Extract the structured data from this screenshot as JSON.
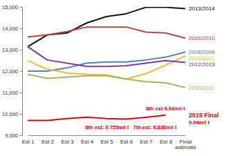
{
  "chart_data": {
    "type": "line",
    "categories": [
      "Est 1",
      "Est 2",
      "Est 3",
      "Est 4",
      "Est 5",
      "Est 6",
      "Est 7",
      "Est 8",
      "Final estimate"
    ],
    "ylim": [
      9000,
      15000
    ],
    "yticks": [
      {
        "value": 9000,
        "label": "9,000"
      },
      {
        "value": 10000,
        "label": "10,000"
      },
      {
        "value": 11000,
        "label": "11,000"
      },
      {
        "value": 12000,
        "label": "12,000"
      },
      {
        "value": 13000,
        "label": "13,000"
      },
      {
        "value": 14000,
        "label": "14,000"
      },
      {
        "value": 15000,
        "label": "15,000"
      }
    ],
    "grid": false,
    "series": [
      {
        "name": "2013/2014",
        "color": "#111111",
        "values": [
          13140,
          13690,
          13780,
          14250,
          14550,
          14680,
          14980,
          14980,
          14920
        ]
      },
      {
        "name": "2009/2010",
        "color": "#b0483f",
        "values": [
          13600,
          13690,
          13850,
          14060,
          14060,
          14060,
          13820,
          13780,
          13540
        ]
      },
      {
        "name": "2008/2009",
        "color": "#4f81bd",
        "values": [
          12000,
          12000,
          12150,
          12370,
          12430,
          12430,
          12520,
          12650,
          12890
        ]
      },
      {
        "name": "2011/2012",
        "color": "#f5b935",
        "values": [
          12490,
          12090,
          11910,
          11850,
          11820,
          11630,
          11880,
          12280,
          12710
        ]
      },
      {
        "name": "2012/2013",
        "color": "#7d3c98",
        "values": [
          13140,
          12520,
          12370,
          12220,
          12220,
          12250,
          12370,
          12490,
          12400
        ]
      },
      {
        "name": "2010/2011",
        "color": "#9bbb59",
        "values": [
          11850,
          11660,
          11720,
          11780,
          11780,
          11630,
          11510,
          11450,
          11230
        ]
      },
      {
        "name": "2015 Final",
        "color": "#e3000f",
        "values": [
          9690,
          9690,
          9780,
          9850,
          9780,
          9755,
          9838,
          9940,
          null
        ]
      }
    ],
    "annotations": [
      "6th est: 9.755mil t",
      "7th est: 9.838mil t",
      "8th est 9.94mil t",
      "9.94mil t"
    ]
  }
}
